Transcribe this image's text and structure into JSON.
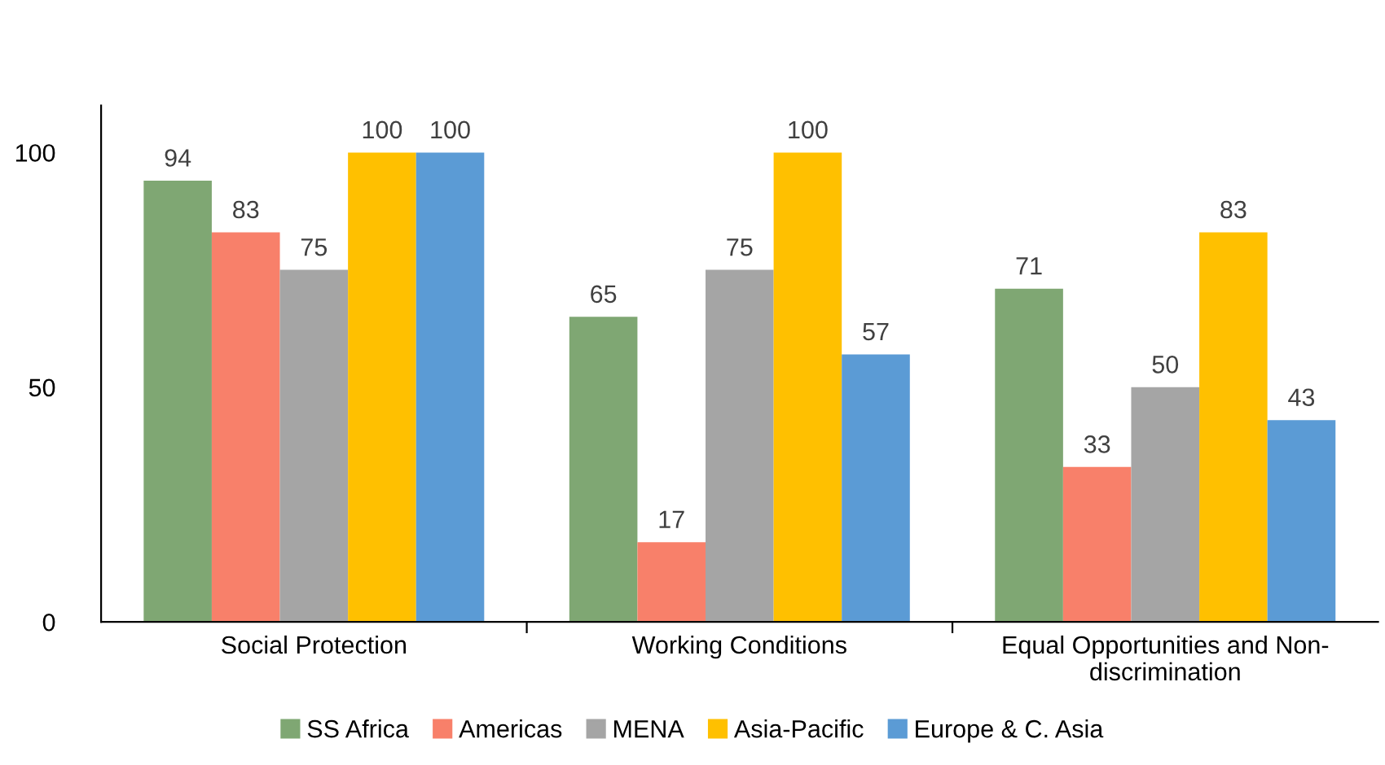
{
  "chart_data": {
    "type": "bar",
    "categories": [
      "Social Protection",
      "Working Conditions",
      "Equal Opportunities and Non-discrimination"
    ],
    "series": [
      {
        "name": "SS Africa",
        "color": "#7fa773",
        "values": [
          94,
          65,
          71
        ]
      },
      {
        "name": "Americas",
        "color": "#f8806a",
        "values": [
          83,
          17,
          33
        ]
      },
      {
        "name": "MENA",
        "color": "#a5a5a5",
        "values": [
          75,
          75,
          50
        ]
      },
      {
        "name": "Asia-Pacific",
        "color": "#ffc000",
        "values": [
          100,
          100,
          83
        ]
      },
      {
        "name": "Europe & C. Asia",
        "color": "#5b9bd5",
        "values": [
          100,
          57,
          43
        ]
      }
    ],
    "ylim": [
      0,
      110
    ],
    "yticks": [
      0,
      50,
      100
    ],
    "grid": false,
    "legend": "bottom",
    "data_labels": true
  }
}
